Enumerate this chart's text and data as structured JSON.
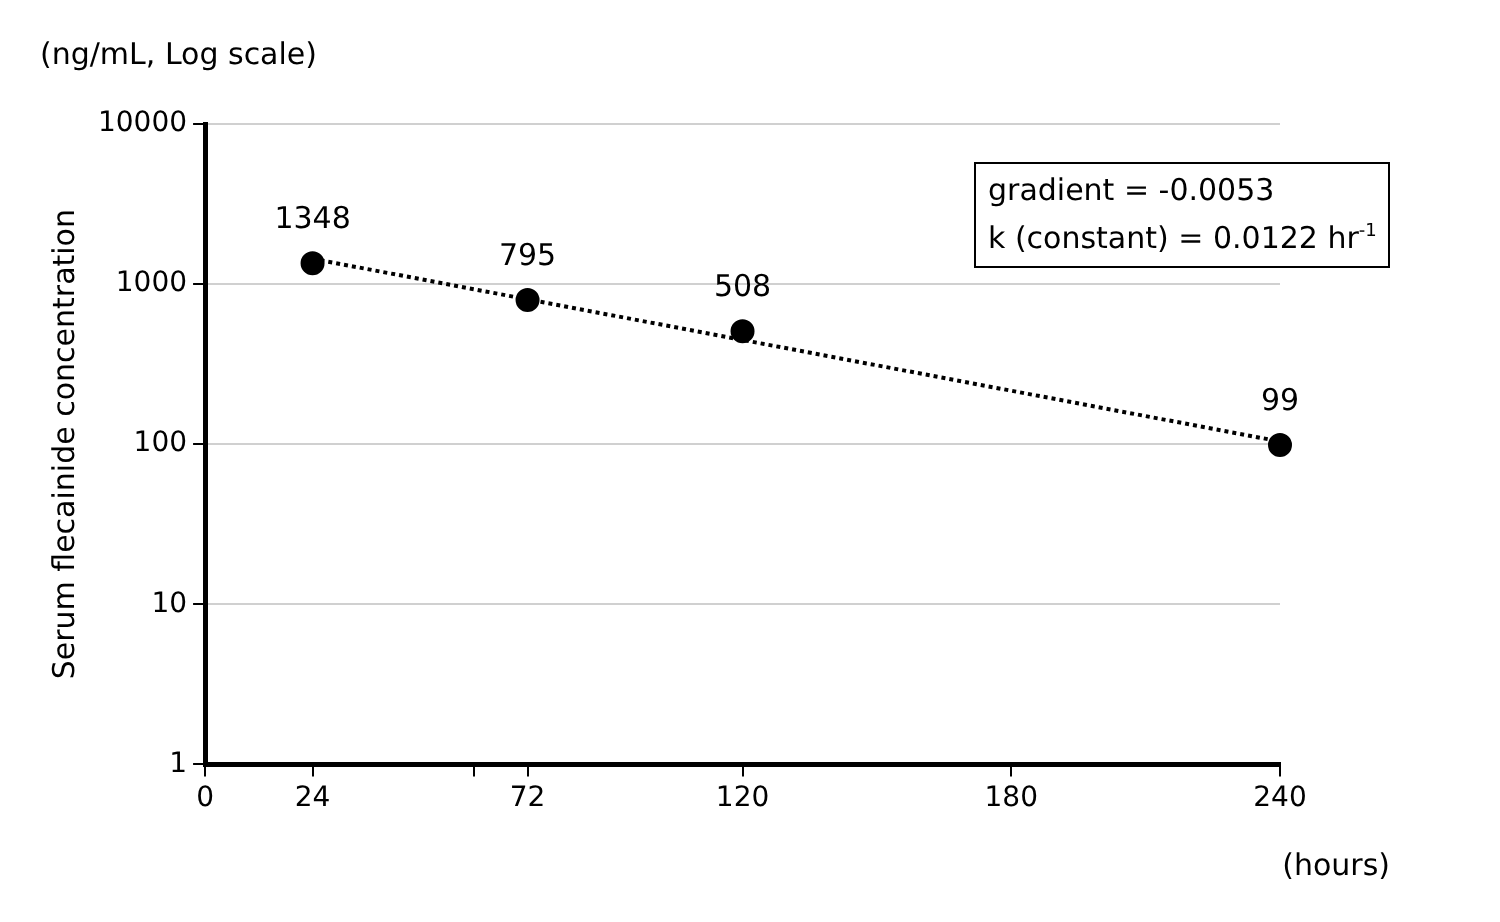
{
  "chart_data": {
    "type": "scatter",
    "ylabel": "Serum flecainide concentration",
    "xlabel": "(hours)",
    "annotations": [
      "(ng/mL, Log scale)",
      "gradient = -0.0053",
      "k (constant) = 0.0122 hr$^{-1}$"
    ],
    "series": [
      {
        "type": "scatter",
        "color": "#000000",
        "x": [
          24,
          72,
          120,
          240
        ],
        "values": [
          1348,
          795,
          508,
          99
        ],
        "marker": "circle",
        "data_labels": true
      },
      {
        "type": "line",
        "color": "#000000",
        "x": [
          24,
          240
        ],
        "values": [
          1440,
          104
        ],
        "line_style": "dotted",
        "marker": "none"
      }
    ],
    "log": "y",
    "xlim": [
      0,
      240
    ],
    "xticks": [
      0,
      24,
      {
        "value": 60,
        "label": null
      },
      72,
      120,
      180,
      240
    ],
    "ylim": [
      1,
      10000
    ],
    "yticks": [
      1,
      10,
      100,
      1000,
      10000
    ],
    "grid": "y",
    "legend": false
  }
}
